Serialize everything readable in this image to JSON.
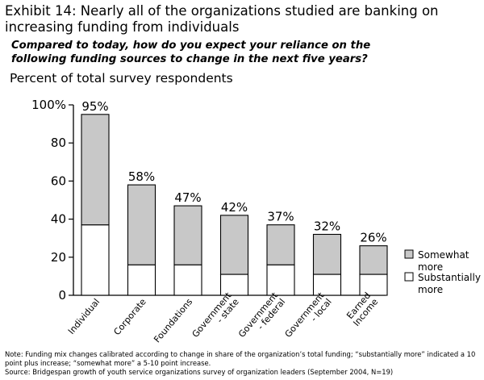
{
  "header": {
    "title_line1": "Exhibit 14: Nearly all of the  organizations studied are banking on",
    "title_line2": "increasing funding from individuals",
    "question_line1": "Compared to today, how do you expect your reliance on the",
    "question_line2": "following funding sources to change in the next five years?",
    "unit_label": "Percent of total survey respondents"
  },
  "chart_data": {
    "type": "bar",
    "stacked": true,
    "categories": [
      "Individual",
      "Corporate",
      "Foundations",
      "Government - state",
      "Government - federal",
      "Government - local",
      "Earned Income"
    ],
    "category_label_lines": [
      [
        "Individual"
      ],
      [
        "Corporate"
      ],
      [
        "Foundations"
      ],
      [
        "Government",
        "- state"
      ],
      [
        "Government",
        "- federal"
      ],
      [
        "Government",
        "- local"
      ],
      [
        "Earned",
        "Income"
      ]
    ],
    "series": [
      {
        "name": "Substantially more",
        "color": "#ffffff",
        "values": [
          37,
          16,
          16,
          11,
          16,
          11,
          11
        ]
      },
      {
        "name": "Somewhat more",
        "color": "#c8c8c8",
        "values": [
          58,
          42,
          31,
          31,
          21,
          21,
          15
        ]
      }
    ],
    "totals": [
      "95%",
      "58%",
      "47%",
      "42%",
      "37%",
      "32%",
      "26%"
    ],
    "ylim": [
      0,
      100
    ],
    "yticks": [
      "0",
      "20",
      "40",
      "60",
      "80",
      "100%"
    ],
    "legend_position": "right",
    "legend": [
      {
        "lines": [
          "Somewhat",
          "more"
        ],
        "color": "#c8c8c8"
      },
      {
        "lines": [
          "Substantially",
          "more"
        ],
        "color": "#ffffff"
      }
    ]
  },
  "footer": {
    "note_line1": "Note: Funding mix changes calibrated according to change in share of the organization’s total funding; “substantially more” indicated a 10",
    "note_line2": "point plus increase; “somewhat more” a 5-10 point increase.",
    "source": "Source: Bridgespan growth of youth service organizations survey of organization leaders (September 2004, N=19)"
  }
}
